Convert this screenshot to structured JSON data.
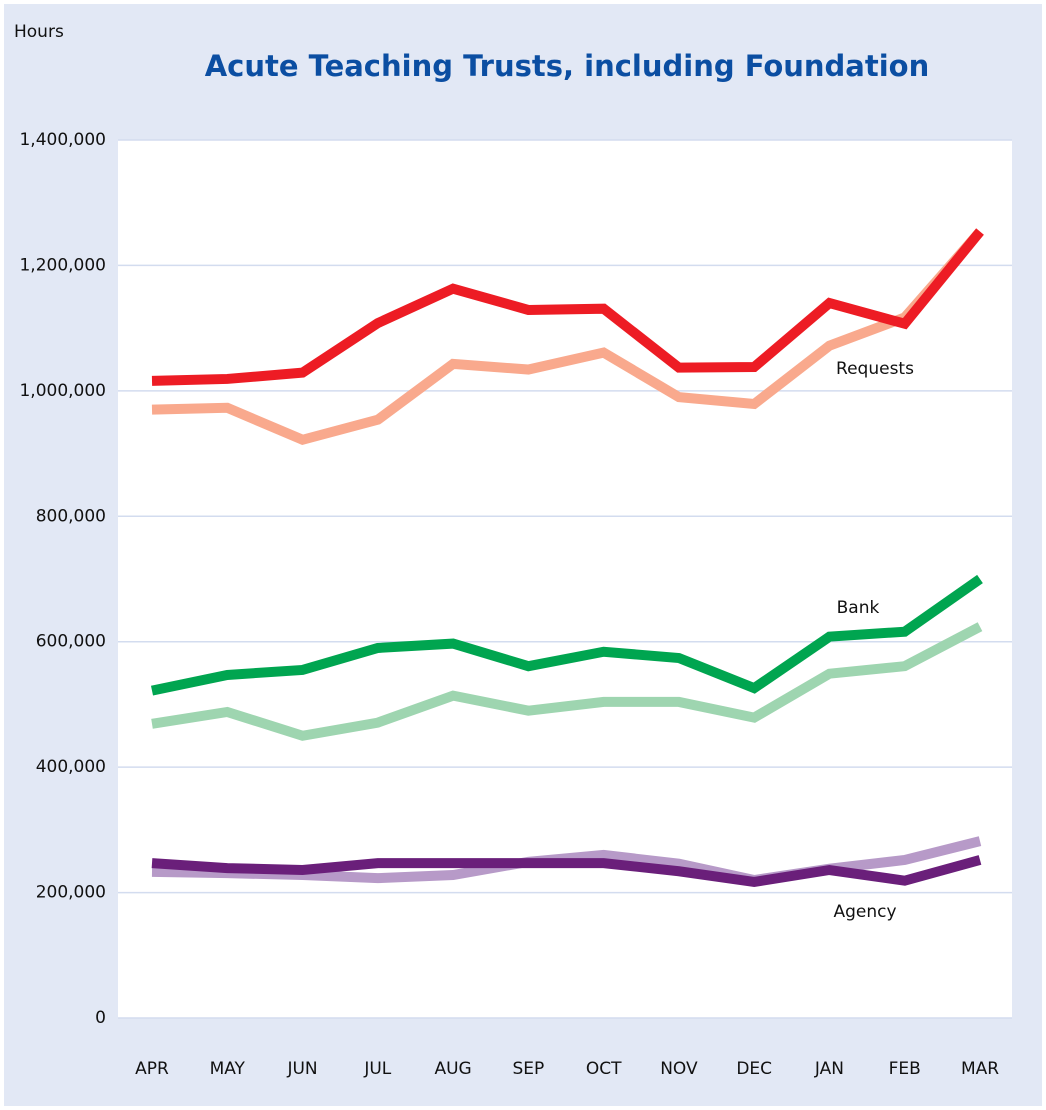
{
  "chart_data": {
    "type": "line",
    "title": "Acute Teaching Trusts, including Foundation",
    "y_label": "Hours",
    "categories": [
      "APR",
      "MAY",
      "JUN",
      "JUL",
      "AUG",
      "SEP",
      "OCT",
      "NOV",
      "DEC",
      "JAN",
      "FEB",
      "MAR"
    ],
    "series": [
      {
        "color": "#f9a98d",
        "values": [
          970000,
          973000,
          922000,
          954000,
          1043000,
          1034000,
          1061000,
          990000,
          979000,
          1072000,
          1117000,
          1254000
        ]
      },
      {
        "color": "#ed1c24",
        "values": [
          1016000,
          1019000,
          1029000,
          1108000,
          1163000,
          1129000,
          1131000,
          1037000,
          1038000,
          1140000,
          1107000,
          1254000
        ]
      },
      {
        "color": "#9ed5b0",
        "values": [
          469000,
          488000,
          450000,
          471000,
          514000,
          490000,
          504000,
          504000,
          479000,
          549000,
          561000,
          624000
        ]
      },
      {
        "color": "#00a550",
        "values": [
          522000,
          547000,
          555000,
          590000,
          597000,
          561000,
          584000,
          574000,
          526000,
          608000,
          616000,
          700000
        ]
      },
      {
        "color": "#b79ac8",
        "values": [
          233000,
          231000,
          228000,
          223000,
          228000,
          249000,
          260000,
          246000,
          220000,
          238000,
          252000,
          282000
        ]
      },
      {
        "color": "#6a1f7a",
        "values": [
          247000,
          239000,
          236000,
          247000,
          247000,
          247000,
          247000,
          234000,
          217000,
          236000,
          219000,
          252000
        ]
      }
    ],
    "annotations": [
      "Requests",
      "Bank",
      "Agency"
    ],
    "ylim": [
      0,
      1400000
    ],
    "yticks": [
      0,
      {
        "value": 200000,
        "label": "200,000"
      },
      {
        "value": 400000,
        "label": "400,000"
      },
      {
        "value": 600000,
        "label": "600,000"
      },
      {
        "value": 800000,
        "label": "800,000"
      },
      {
        "value": 1000000,
        "label": "1,000,000"
      },
      {
        "value": 1200000,
        "label": "1,200,000"
      },
      {
        "value": 1400000,
        "label": "1,400,000"
      }
    ],
    "grid": true
  }
}
